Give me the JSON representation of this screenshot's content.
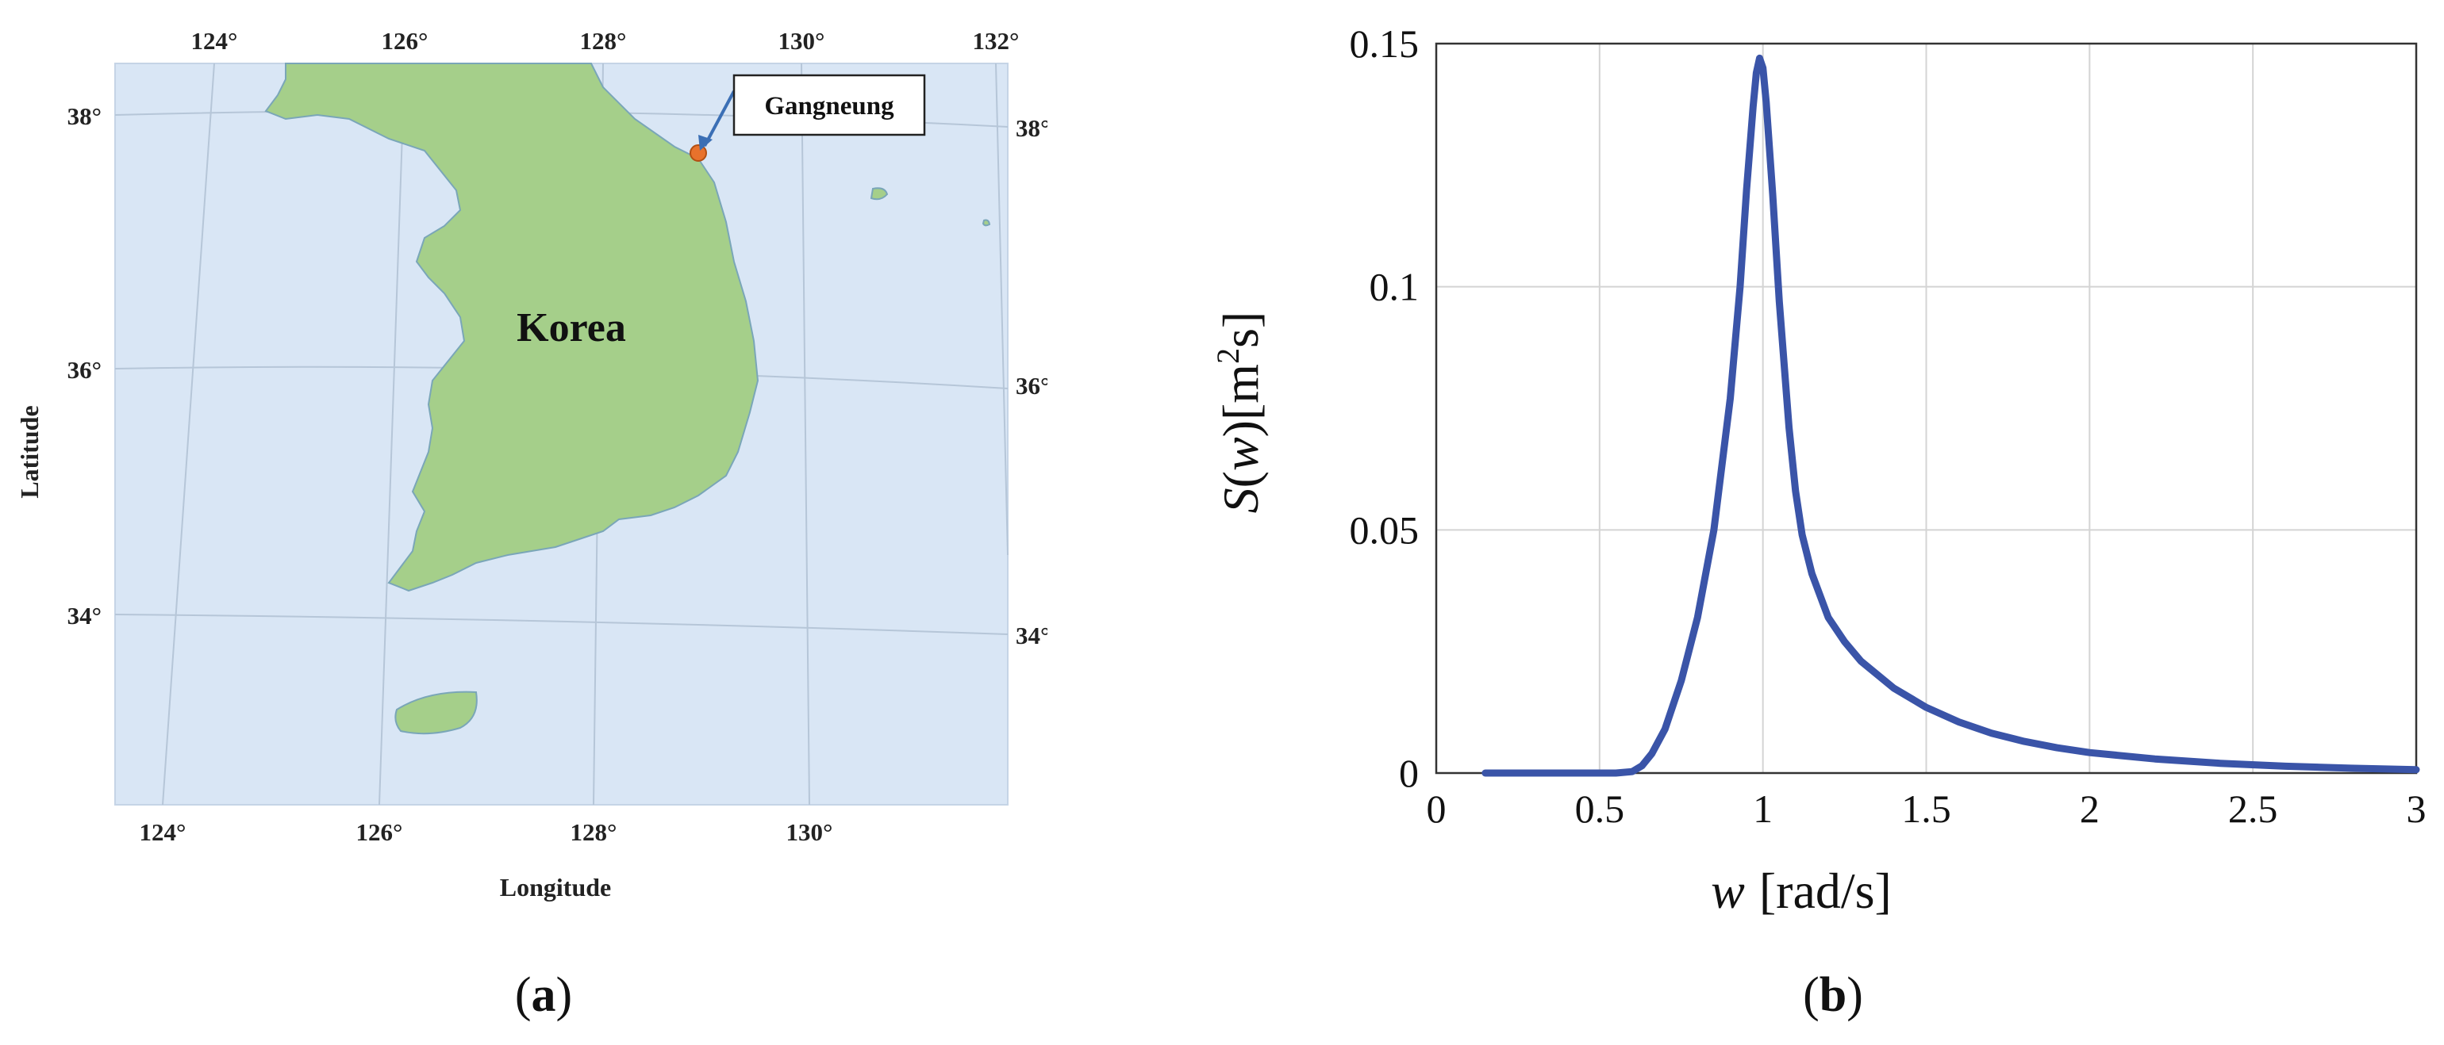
{
  "panels": {
    "a": {
      "label_open": "(",
      "label_letter": "a",
      "label_close": ")",
      "map": {
        "country_label": "Korea",
        "callout_label": "Gangneung",
        "xlabel": "Longitude",
        "ylabel": "Latitude",
        "top_ticks": [
          "124°",
          "126°",
          "128°",
          "130°",
          "132°"
        ],
        "bottom_ticks": [
          "124°",
          "126°",
          "128°",
          "130°"
        ],
        "left_ticks": [
          "38°",
          "36°",
          "34°"
        ],
        "right_ticks": [
          "38°",
          "36°",
          "34°"
        ],
        "colors": {
          "sea": "#d9e6f5",
          "land": "#a5cf8a",
          "coast": "#7aa6b8",
          "marker": "#e8722c",
          "grid": "#b6c6d8",
          "arrow": "#3b6fb5"
        }
      }
    },
    "b": {
      "label_open": "(",
      "label_letter": "b",
      "label_close": ")",
      "ylabel_text": {
        "s": "S",
        "lp": "(",
        "w": "w",
        "rp": ")",
        "unit_open": "[m",
        "sup": "2",
        "unit_close": "s]"
      },
      "xlabel_text": {
        "w": "w",
        "unit": "[rad/s]"
      },
      "xticks": [
        "0",
        "0.5",
        "1",
        "1.5",
        "2",
        "2.5",
        "3"
      ],
      "yticks": [
        "0",
        "0.05",
        "0.1",
        "0.15"
      ]
    }
  },
  "chart_data": {
    "type": "line",
    "title": "",
    "xlabel": "w [rad/s]",
    "ylabel": "S(w) [m²s]",
    "xlim": [
      0,
      3
    ],
    "ylim": [
      0,
      0.15
    ],
    "grid": true,
    "color": "#3a54a8",
    "series": [
      {
        "x": [
          0.15,
          0.3,
          0.45,
          0.55,
          0.6,
          0.63,
          0.66,
          0.7,
          0.75,
          0.8,
          0.85,
          0.9,
          0.93,
          0.95,
          0.97,
          0.98,
          0.99,
          1.0,
          1.01,
          1.03,
          1.05,
          1.08,
          1.1,
          1.12,
          1.15,
          1.2,
          1.25,
          1.3,
          1.4,
          1.5,
          1.6,
          1.7,
          1.8,
          1.9,
          2.0,
          2.2,
          2.4,
          2.6,
          2.8,
          3.0
        ],
        "y": [
          0,
          0,
          0,
          0,
          0.0003,
          0.0015,
          0.004,
          0.009,
          0.019,
          0.032,
          0.05,
          0.077,
          0.1,
          0.12,
          0.137,
          0.144,
          0.147,
          0.145,
          0.138,
          0.119,
          0.097,
          0.071,
          0.058,
          0.049,
          0.041,
          0.032,
          0.027,
          0.023,
          0.0175,
          0.0135,
          0.0105,
          0.0082,
          0.0065,
          0.0052,
          0.0042,
          0.0029,
          0.002,
          0.0014,
          0.001,
          0.0007
        ]
      }
    ]
  }
}
